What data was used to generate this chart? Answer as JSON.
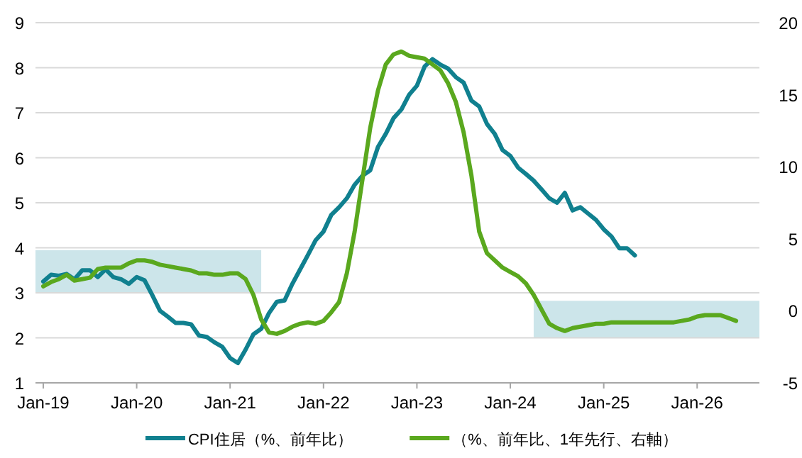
{
  "chart_data": {
    "type": "line",
    "x": [
      "2019-01",
      "2019-02",
      "2019-03",
      "2019-04",
      "2019-05",
      "2019-06",
      "2019-07",
      "2019-08",
      "2019-09",
      "2019-10",
      "2019-11",
      "2019-12",
      "2020-01",
      "2020-02",
      "2020-03",
      "2020-04",
      "2020-05",
      "2020-06",
      "2020-07",
      "2020-08",
      "2020-09",
      "2020-10",
      "2020-11",
      "2020-12",
      "2021-01",
      "2021-02",
      "2021-03",
      "2021-04",
      "2021-05",
      "2021-06",
      "2021-07",
      "2021-08",
      "2021-09",
      "2021-10",
      "2021-11",
      "2021-12",
      "2022-01",
      "2022-02",
      "2022-03",
      "2022-04",
      "2022-05",
      "2022-06",
      "2022-07",
      "2022-08",
      "2022-09",
      "2022-10",
      "2022-11",
      "2022-12",
      "2023-01",
      "2023-02",
      "2023-03",
      "2023-04",
      "2023-05",
      "2023-06",
      "2023-07",
      "2023-08",
      "2023-09",
      "2023-10",
      "2023-11",
      "2023-12",
      "2024-01",
      "2024-02",
      "2024-03",
      "2024-04",
      "2024-05",
      "2024-06",
      "2024-07",
      "2024-08",
      "2024-09",
      "2024-10",
      "2024-11",
      "2024-12",
      "2025-01",
      "2025-02",
      "2025-03",
      "2025-04",
      "2025-05",
      "2025-06",
      "2025-07",
      "2025-08",
      "2025-09",
      "2025-10",
      "2025-11",
      "2025-12",
      "2026-01",
      "2026-02",
      "2026-03",
      "2026-04",
      "2026-05",
      "2026-06"
    ],
    "series": [
      {
        "type": "area",
        "x": [
          "2018-12",
          "2021-05"
        ],
        "values": [
          null,
          null
        ],
        "lower": [
          3.0,
          3.0
        ],
        "upper": [
          3.95,
          3.95
        ],
        "color": "#cce5ea"
      },
      {
        "type": "area",
        "axis": "y2",
        "x": [
          "2024-04",
          "2026-09"
        ],
        "values": [
          null,
          null
        ],
        "lower": [
          -1.9,
          -1.9
        ],
        "upper": [
          0.7,
          0.7
        ],
        "color": "#cce5ea"
      },
      {
        "name": "CPI住居（%、前年比）",
        "color": "#10808f",
        "values": [
          3.25,
          3.4,
          3.38,
          3.42,
          3.3,
          3.5,
          3.5,
          3.35,
          3.52,
          3.35,
          3.3,
          3.2,
          3.35,
          3.28,
          2.95,
          2.6,
          2.47,
          2.33,
          2.33,
          2.3,
          2.05,
          2.02,
          1.9,
          1.8,
          1.55,
          1.44,
          1.74,
          2.08,
          2.2,
          2.55,
          2.8,
          2.83,
          3.2,
          3.52,
          3.84,
          4.17,
          4.36,
          4.73,
          4.9,
          5.1,
          5.4,
          5.6,
          5.72,
          6.24,
          6.53,
          6.88,
          7.07,
          7.4,
          7.6,
          8.03,
          8.19,
          8.07,
          7.98,
          7.79,
          7.67,
          7.27,
          7.14,
          6.75,
          6.53,
          6.17,
          6.04,
          5.78,
          5.64,
          5.49,
          5.3,
          5.1,
          5.0,
          5.22,
          4.83,
          4.9,
          4.76,
          4.62,
          4.41,
          4.25,
          3.99,
          3.99,
          3.83,
          null,
          null,
          null,
          null,
          null,
          null,
          null,
          null,
          null,
          null,
          null,
          null,
          null
        ]
      },
      {
        "name": "（%、前年比、1年先行、右軸）",
        "color": "#5aa81e",
        "axis": "y2",
        "values": [
          1.7,
          2.0,
          2.2,
          2.5,
          2.1,
          2.2,
          2.3,
          2.9,
          3.0,
          3.0,
          3.0,
          3.3,
          3.5,
          3.5,
          3.4,
          3.2,
          3.1,
          3.0,
          2.9,
          2.8,
          2.6,
          2.6,
          2.5,
          2.5,
          2.6,
          2.6,
          2.2,
          1.1,
          -0.6,
          -1.5,
          -1.6,
          -1.4,
          -1.1,
          -0.9,
          -0.8,
          -0.9,
          -0.7,
          -0.1,
          0.6,
          2.6,
          5.5,
          9.1,
          12.7,
          15.3,
          17.1,
          17.8,
          18.0,
          17.7,
          17.6,
          17.5,
          17.1,
          16.7,
          15.8,
          14.5,
          12.4,
          9.4,
          5.5,
          4.0,
          3.5,
          3.0,
          2.7,
          2.4,
          1.9,
          1.1,
          0.1,
          -0.9,
          -1.2,
          -1.4,
          -1.2,
          -1.1,
          -1.0,
          -0.9,
          -0.9,
          -0.8,
          -0.8,
          -0.8,
          -0.8,
          -0.8,
          -0.8,
          -0.8,
          -0.8,
          -0.8,
          -0.7,
          -0.6,
          -0.4,
          -0.3,
          -0.3,
          -0.3,
          -0.5,
          -0.7
        ]
      }
    ],
    "xlim": [
      "2018-12",
      "2026-09"
    ],
    "xticks": [
      {
        "value": "2019-01",
        "label": "Jan-19"
      },
      {
        "value": "2020-01",
        "label": "Jan-20"
      },
      {
        "value": "2021-01",
        "label": "Jan-21"
      },
      {
        "value": "2022-01",
        "label": "Jan-22"
      },
      {
        "value": "2023-01",
        "label": "Jan-23"
      },
      {
        "value": "2024-01",
        "label": "Jan-24"
      },
      {
        "value": "2025-01",
        "label": "Jan-25"
      },
      {
        "value": "2026-01",
        "label": "Jan-26"
      }
    ],
    "ylim": [
      1,
      9
    ],
    "yticks": [
      1,
      2,
      3,
      4,
      5,
      6,
      7,
      8,
      9
    ],
    "y2lim": [
      -5,
      20
    ],
    "y2ticks": [
      -5,
      0,
      5,
      10,
      15,
      20
    ],
    "grid": "y",
    "legend": "bottom"
  }
}
